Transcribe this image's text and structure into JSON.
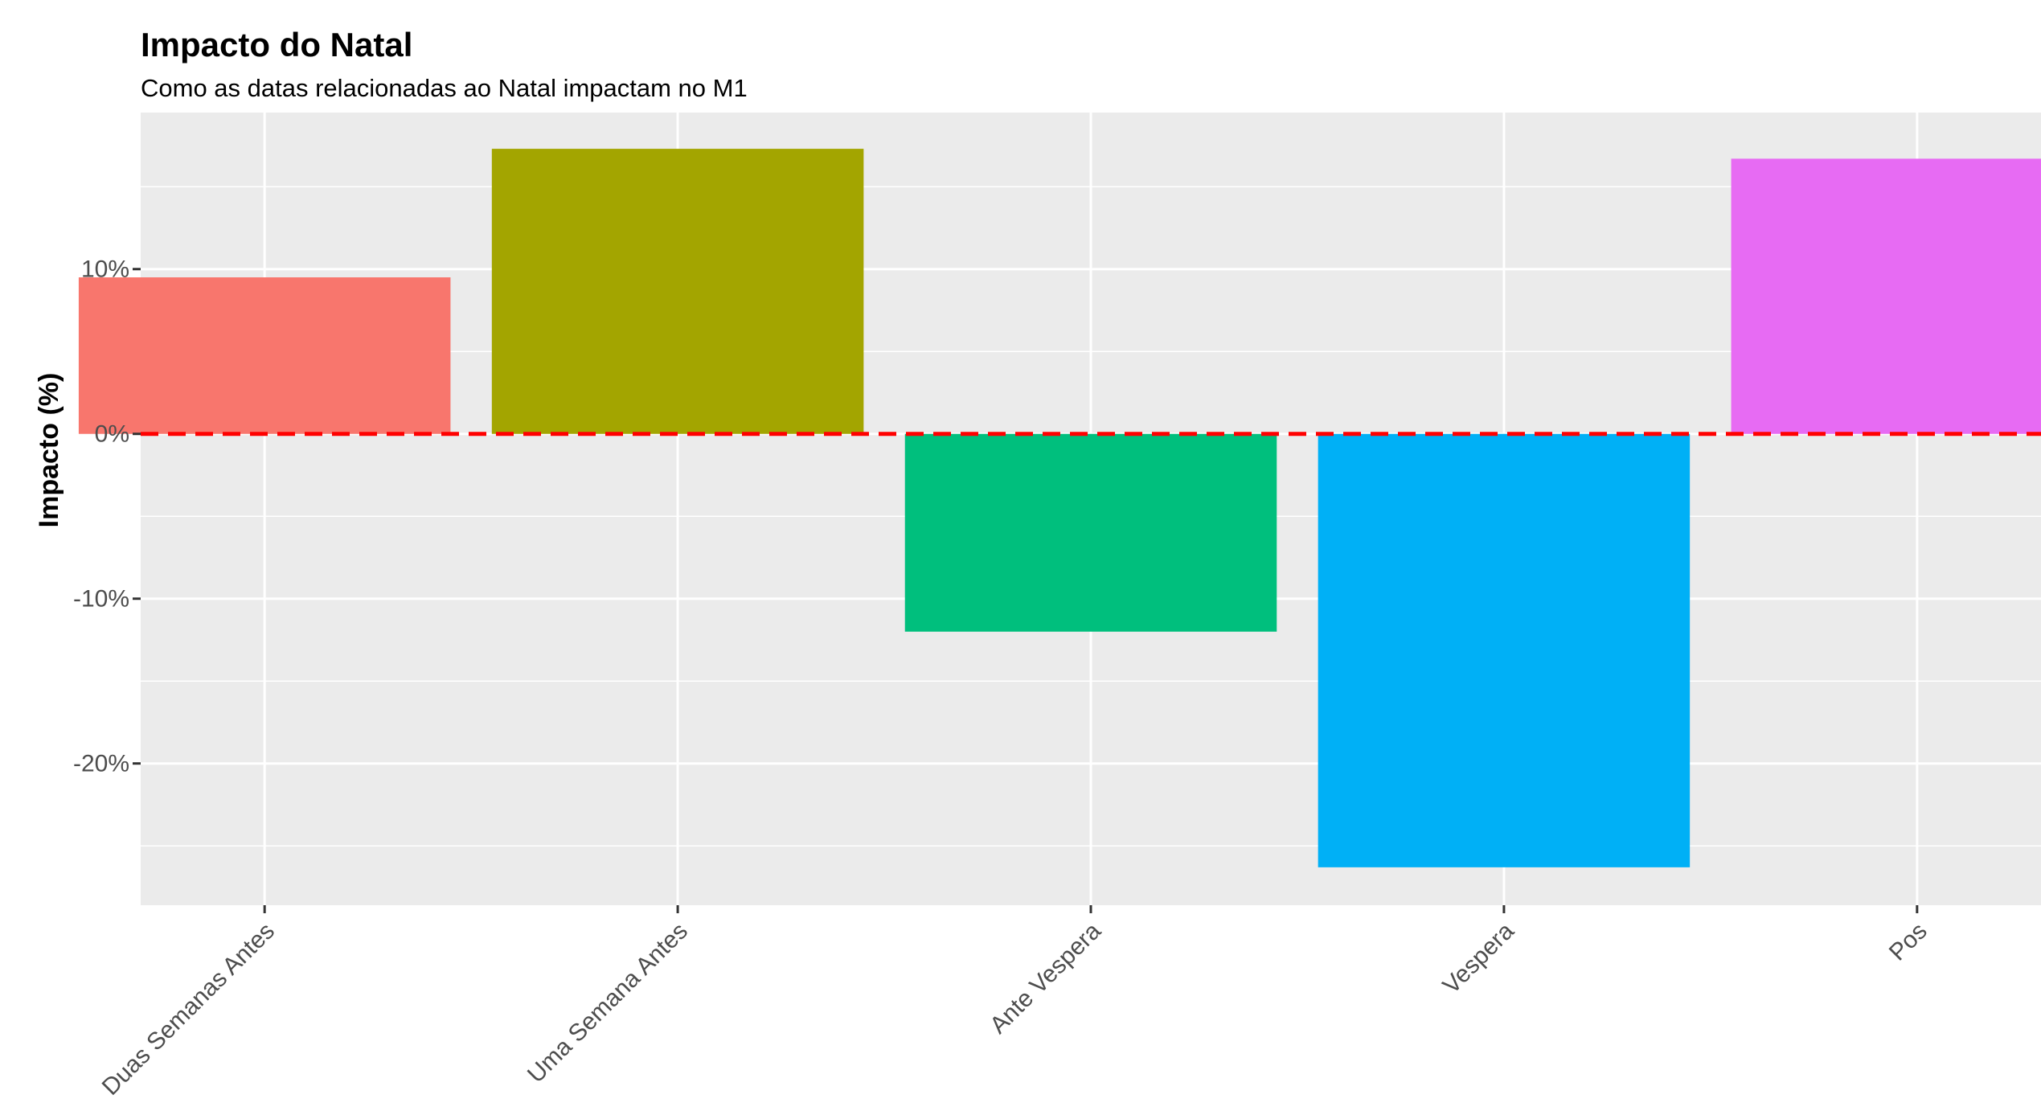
{
  "chart_data": {
    "type": "bar",
    "title": "Impacto do Natal",
    "subtitle": "Como as datas relacionadas ao Natal impactam no M1",
    "xlabel": "",
    "ylabel": "Impacto (%)",
    "categories": [
      "Duas Semanas Antes",
      "Uma Semana Antes",
      "Ante Vespera",
      "Vespera",
      "Pos"
    ],
    "values": [
      9.5,
      17.3,
      -12.0,
      -26.3,
      16.7
    ],
    "colors": [
      "#F8766D",
      "#A3A500",
      "#00BF7D",
      "#00B0F6",
      "#E76BF3"
    ],
    "yticks": [
      10,
      0,
      -10,
      -20
    ],
    "ytick_labels": [
      "10%",
      "0%",
      "-10%",
      "-20%"
    ],
    "ylim": [
      -28.6,
      19.5
    ],
    "reference_line": {
      "y": 0,
      "color": "#FF0000",
      "style": "dashed"
    },
    "grid": true,
    "panel_background": "#EBEBEB",
    "legend": "none"
  }
}
